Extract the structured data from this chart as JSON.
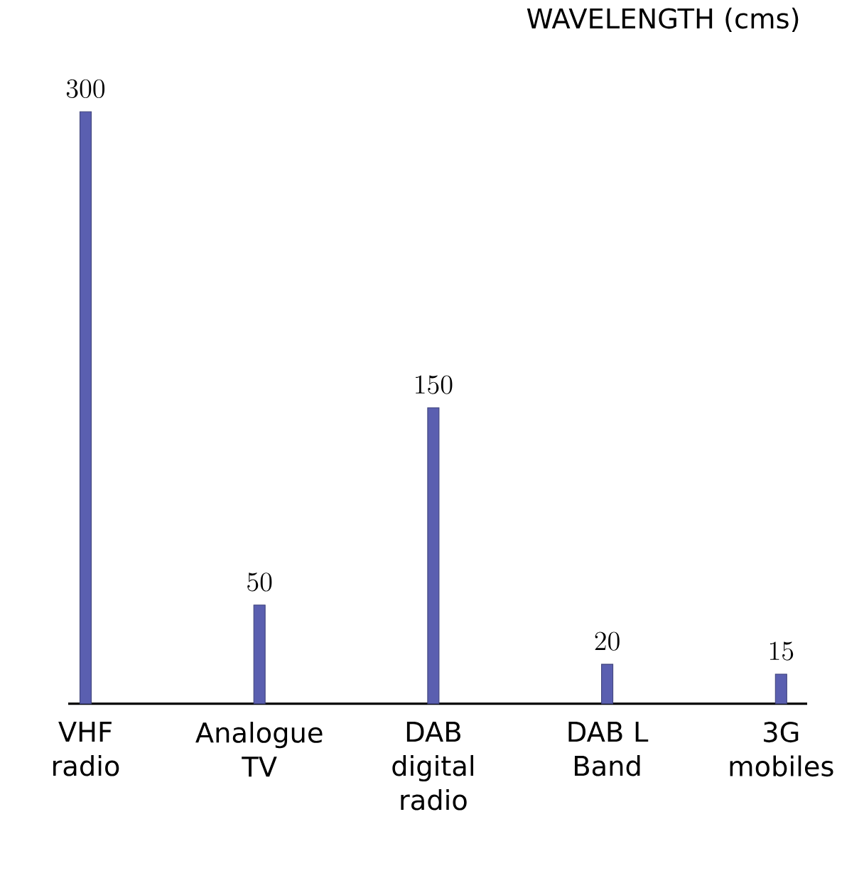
{
  "chart_data": {
    "type": "bar",
    "title": "WAVELENGTH (cms)",
    "categories": [
      "VHF radio",
      "Analogue TV",
      "DAB digital radio",
      "DAB L Band",
      "3G mobiles"
    ],
    "values": [
      300,
      50,
      150,
      20,
      15
    ],
    "color": "#5a5fb0",
    "data_labels": true
  }
}
